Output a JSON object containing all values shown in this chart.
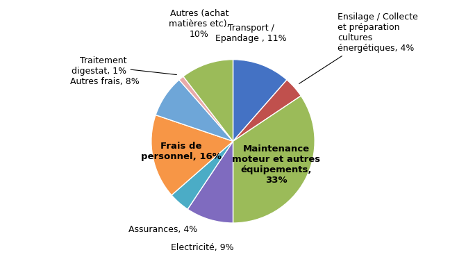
{
  "slices": [
    {
      "label": "Transport /\nEpandage , 11%",
      "value": 11,
      "color": "#4472C4"
    },
    {
      "label": "Ensilage / Collecte\net préparation\ncultures\nénergétiques, 4%",
      "value": 4,
      "color": "#C0504D"
    },
    {
      "label": "Maintenance\nmoteur et autres\néquipements,\n33%",
      "value": 33,
      "color": "#9BBB59"
    },
    {
      "label": "Electricité, 9%",
      "value": 9,
      "color": "#7F6BBF"
    },
    {
      "label": "Assurances, 4%",
      "value": 4,
      "color": "#4BACC6"
    },
    {
      "label": "Frais de\npersonnel, 16%",
      "value": 16,
      "color": "#F79646"
    },
    {
      "label": "Autres frais, 8%",
      "value": 8,
      "color": "#6EA6D8"
    },
    {
      "label": "Traitement\ndigestat, 1%",
      "value": 1,
      "color": "#E8AAAA"
    },
    {
      "label": "Autres (achat\nmatières etc),\n10%",
      "value": 10,
      "color": "#9BBB59"
    }
  ],
  "bg_color": "#FFFFFF",
  "font_size": 9,
  "startangle": 90,
  "counterclock": false
}
